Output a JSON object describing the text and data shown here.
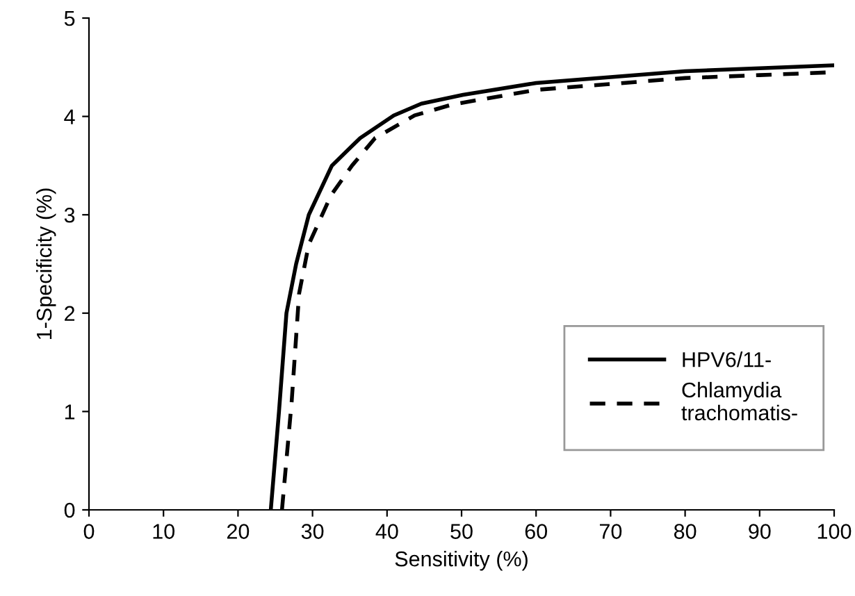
{
  "chart_data": {
    "type": "line",
    "xlabel": "Sensitivity (%)",
    "ylabel": "1-Specificity (%)",
    "xlim": [
      0,
      100
    ],
    "xticks": [
      0,
      10,
      20,
      30,
      40,
      50,
      60,
      70,
      80,
      90,
      100
    ],
    "ylim": [
      0,
      5
    ],
    "yticks": [
      0,
      1,
      2,
      3,
      4,
      5
    ],
    "grid": false,
    "legend": "lower right",
    "marker": "none",
    "series": [
      {
        "name": "HPV6/11-",
        "color": "#000000",
        "line_style": "solid",
        "x": [
          24.4,
          25.5,
          26.5,
          27.8,
          29.5,
          32.6,
          36.4,
          40.9,
          44.6,
          50.2,
          60,
          70,
          80,
          90,
          100
        ],
        "values": [
          0,
          1.0,
          2.0,
          2.5,
          3.0,
          3.5,
          3.78,
          4.01,
          4.13,
          4.22,
          4.34,
          4.4,
          4.46,
          4.49,
          4.52
        ]
      },
      {
        "name": "Chlamydia\ntrachomatis-",
        "color": "#000000",
        "line_style": "dashed",
        "x": [
          25.9,
          27.2,
          28.2,
          29.5,
          32.5,
          35.3,
          38.4,
          43.7,
          48.7,
          60,
          70,
          80,
          90,
          100
        ],
        "values": [
          0,
          1.1,
          2.2,
          2.7,
          3.2,
          3.5,
          3.78,
          4.01,
          4.12,
          4.27,
          4.33,
          4.39,
          4.42,
          4.45
        ]
      }
    ]
  }
}
